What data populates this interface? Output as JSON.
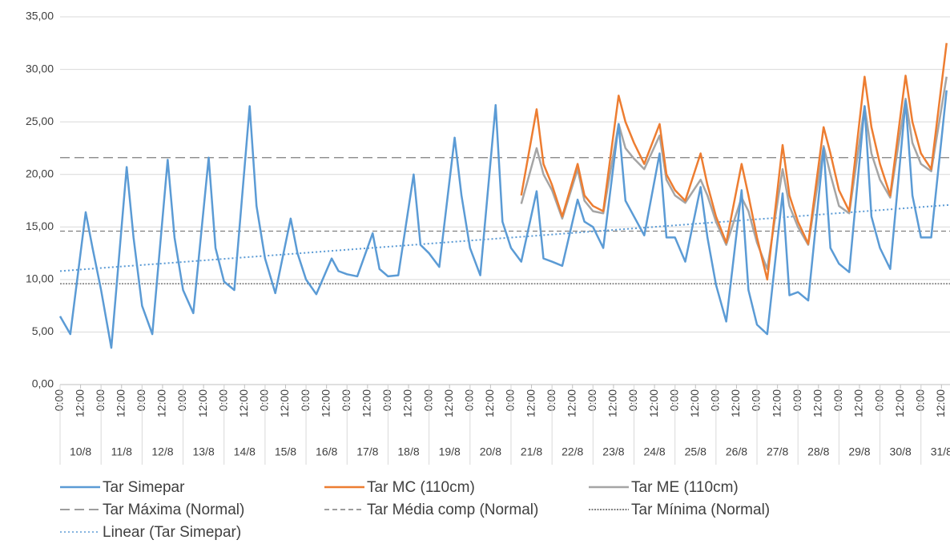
{
  "chart_data": {
    "type": "line",
    "xlim": [
      0,
      521
    ],
    "ylim": [
      0,
      35
    ],
    "yticks": [
      {
        "value": 0,
        "label": "0,00"
      },
      {
        "value": 5,
        "label": "5,00"
      },
      {
        "value": 10,
        "label": "10,00"
      },
      {
        "value": 15,
        "label": "15,00"
      },
      {
        "value": 20,
        "label": "20,00"
      },
      {
        "value": 25,
        "label": "25,00"
      },
      {
        "value": 30,
        "label": "30,00"
      },
      {
        "value": 35,
        "label": "35,00"
      }
    ],
    "xticks": [
      {
        "value": 0,
        "label": "0:00"
      },
      {
        "value": 12,
        "label": "12:00"
      },
      {
        "value": 24,
        "label": "0:00"
      },
      {
        "value": 36,
        "label": "12:00"
      },
      {
        "value": 48,
        "label": "0:00"
      },
      {
        "value": 60,
        "label": "12:00"
      },
      {
        "value": 72,
        "label": "0:00"
      },
      {
        "value": 84,
        "label": "12:00"
      },
      {
        "value": 96,
        "label": "0:00"
      },
      {
        "value": 108,
        "label": "12:00"
      },
      {
        "value": 120,
        "label": "0:00"
      },
      {
        "value": 132,
        "label": "12:00"
      },
      {
        "value": 144,
        "label": "0:00"
      },
      {
        "value": 156,
        "label": "12:00"
      },
      {
        "value": 168,
        "label": "0:00"
      },
      {
        "value": 180,
        "label": "12:00"
      },
      {
        "value": 192,
        "label": "0:00"
      },
      {
        "value": 204,
        "label": "12:00"
      },
      {
        "value": 216,
        "label": "0:00"
      },
      {
        "value": 228,
        "label": "12:00"
      },
      {
        "value": 240,
        "label": "0:00"
      },
      {
        "value": 252,
        "label": "12:00"
      },
      {
        "value": 264,
        "label": "0:00"
      },
      {
        "value": 276,
        "label": "12:00"
      },
      {
        "value": 288,
        "label": "0:00"
      },
      {
        "value": 300,
        "label": "12:00"
      },
      {
        "value": 312,
        "label": "0:00"
      },
      {
        "value": 324,
        "label": "12:00"
      },
      {
        "value": 336,
        "label": "0:00"
      },
      {
        "value": 348,
        "label": "12:00"
      },
      {
        "value": 360,
        "label": "0:00"
      },
      {
        "value": 372,
        "label": "12:00"
      },
      {
        "value": 384,
        "label": "0:00"
      },
      {
        "value": 396,
        "label": "12:00"
      },
      {
        "value": 408,
        "label": "0:00"
      },
      {
        "value": 420,
        "label": "12:00"
      },
      {
        "value": 432,
        "label": "0:00"
      },
      {
        "value": 444,
        "label": "12:00"
      },
      {
        "value": 456,
        "label": "0:00"
      },
      {
        "value": 468,
        "label": "12:00"
      },
      {
        "value": 480,
        "label": "0:00"
      },
      {
        "value": 492,
        "label": "12:00"
      },
      {
        "value": 504,
        "label": "0:00"
      },
      {
        "value": 516,
        "label": "12:00"
      }
    ],
    "day_labels": [
      "10/8",
      "11/8",
      "12/8",
      "13/8",
      "14/8",
      "15/8",
      "16/8",
      "17/8",
      "18/8",
      "19/8",
      "20/8",
      "21/8",
      "22/8",
      "23/8",
      "24/8",
      "25/8",
      "26/8",
      "27/8",
      "28/8",
      "29/8",
      "30/8",
      "31/8"
    ],
    "grid": true,
    "series": [
      {
        "name": "Tar Simepar",
        "color": "#5b9bd5",
        "dash": "solid",
        "x": [
          0,
          6,
          15,
          19,
          24,
          30,
          39,
          43,
          48,
          54,
          63,
          67,
          72,
          78,
          87,
          91,
          96,
          102,
          111,
          115,
          120,
          126,
          135,
          139,
          144,
          150,
          159,
          163,
          168,
          174,
          183,
          187,
          192,
          198,
          207,
          211,
          216,
          222,
          231,
          235,
          240,
          246,
          255,
          259,
          264,
          270,
          279,
          283,
          288,
          294,
          303,
          307,
          312,
          318,
          327,
          331,
          336,
          342,
          351,
          355,
          360,
          366,
          375,
          379,
          384,
          390,
          399,
          403,
          408,
          414,
          423,
          427,
          432,
          438,
          447,
          451,
          456,
          462,
          471,
          475,
          480,
          486,
          495,
          499,
          504,
          510,
          519
        ],
        "values": [
          6.5,
          4.8,
          16.4,
          13,
          9,
          3.5,
          20.7,
          14,
          7.5,
          4.8,
          21.4,
          14,
          9,
          6.8,
          21.6,
          13,
          9.8,
          9,
          26.5,
          17,
          12,
          8.7,
          15.8,
          12.5,
          10,
          8.6,
          12,
          10.8,
          10.5,
          10.3,
          14.4,
          11,
          10.3,
          10.4,
          20,
          13.3,
          12.5,
          11.2,
          23.5,
          18,
          13,
          10.4,
          26.6,
          15.5,
          13,
          11.7,
          18.4,
          12,
          11.7,
          11.3,
          17.6,
          15.5,
          15,
          13,
          24.8,
          17.5,
          16,
          14.2,
          22,
          14,
          14,
          11.7,
          18.8,
          14,
          9.5,
          6,
          18.5,
          9,
          5.7,
          4.8,
          18.2,
          8.5,
          8.8,
          8,
          22.5,
          13,
          11.5,
          10.7,
          26.5,
          16,
          13,
          11,
          27,
          18,
          14,
          14,
          28
        ]
      },
      {
        "name": "Tar MC (110cm)",
        "color": "#ed7d31",
        "dash": "solid",
        "x": [
          270,
          279,
          283,
          288,
          294,
          303,
          307,
          312,
          318,
          327,
          331,
          336,
          342,
          351,
          355,
          360,
          366,
          375,
          379,
          384,
          390,
          399,
          403,
          408,
          414,
          423,
          427,
          432,
          438,
          447,
          451,
          456,
          462,
          471,
          475,
          480,
          486,
          495,
          499,
          504,
          510,
          519
        ],
        "values": [
          18,
          26.2,
          21,
          19,
          16,
          21,
          18,
          17,
          16.5,
          27.5,
          25,
          23,
          21,
          24.8,
          20,
          18.5,
          17.5,
          22,
          19,
          16,
          13.5,
          21,
          18,
          14,
          10,
          22.8,
          18,
          15.5,
          13.4,
          24.5,
          22,
          18.5,
          16.5,
          29.3,
          24.5,
          21,
          18,
          29.4,
          25,
          22,
          20.5,
          32.5
        ]
      },
      {
        "name": "Tar ME (110cm)",
        "color": "#a5a5a5",
        "dash": "solid",
        "x": [
          270,
          279,
          283,
          288,
          294,
          303,
          307,
          312,
          318,
          327,
          331,
          336,
          342,
          351,
          355,
          360,
          366,
          375,
          379,
          384,
          390,
          399,
          403,
          408,
          414,
          423,
          427,
          432,
          438,
          447,
          451,
          456,
          462,
          471,
          475,
          480,
          486,
          495,
          499,
          504,
          510,
          519
        ],
        "values": [
          17.2,
          22.5,
          20,
          18.5,
          15.8,
          20.5,
          17.5,
          16.5,
          16.3,
          24.8,
          22.5,
          21.5,
          20.5,
          23.7,
          19.5,
          18,
          17.3,
          19.5,
          18,
          15.5,
          13.3,
          17.8,
          16.5,
          13.5,
          11,
          20.5,
          17,
          15,
          13.3,
          22.7,
          20,
          17,
          16.3,
          26.5,
          22,
          19.5,
          17.8,
          27.2,
          23,
          21,
          20.3,
          29.3
        ]
      }
    ],
    "reference_lines": [
      {
        "name": "Tar Máxima (Normal)",
        "value": 21.6,
        "color": "#7f7f7f",
        "dash": "long"
      },
      {
        "name": "Tar Média comp (Normal)",
        "value": 14.6,
        "color": "#7f7f7f",
        "dash": "short"
      },
      {
        "name": "Tar Mínima (Normal)",
        "value": 9.6,
        "color": "#595959",
        "dash": "dense"
      }
    ],
    "trend": {
      "name": "Linear (Tar Simepar)",
      "color": "#5b9bd5",
      "dash": "dotted",
      "x": [
        0,
        521
      ],
      "values": [
        10.8,
        17.1
      ]
    }
  }
}
